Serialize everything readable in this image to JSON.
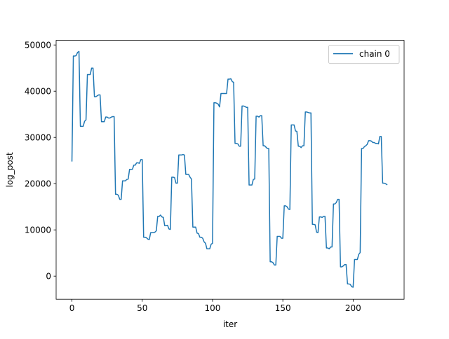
{
  "chart_data": {
    "type": "line",
    "title": "",
    "xlabel": "iter",
    "ylabel": "log_post",
    "xlim": [
      -11.25,
      236.25
    ],
    "ylim": [
      -5000,
      51000
    ],
    "xticks": [
      0,
      50,
      100,
      150,
      200
    ],
    "xtick_labels": [
      "0",
      "50",
      "100",
      "150",
      "200"
    ],
    "yticks": [
      0,
      10000,
      20000,
      30000,
      40000,
      50000
    ],
    "ytick_labels": [
      "0",
      "10000",
      "20000",
      "30000",
      "40000",
      "50000"
    ],
    "grid": false,
    "legend": {
      "position": "top-right",
      "entries": [
        "chain 0"
      ]
    },
    "series": [
      {
        "name": "chain 0",
        "color": "#1f77b4",
        "x": [
          0,
          1,
          2,
          3,
          4,
          5,
          6,
          7,
          8,
          9,
          10,
          11,
          12,
          13,
          14,
          15,
          16,
          17,
          18,
          19,
          20,
          21,
          22,
          23,
          24,
          25,
          26,
          27,
          28,
          29,
          30,
          31,
          32,
          33,
          34,
          35,
          36,
          37,
          38,
          39,
          40,
          41,
          42,
          43,
          44,
          45,
          46,
          47,
          48,
          49,
          50,
          51,
          52,
          53,
          54,
          55,
          56,
          57,
          58,
          59,
          60,
          61,
          62,
          63,
          64,
          65,
          66,
          67,
          68,
          69,
          70,
          71,
          72,
          73,
          74,
          75,
          76,
          77,
          78,
          79,
          80,
          81,
          82,
          83,
          84,
          85,
          86,
          87,
          88,
          89,
          90,
          91,
          92,
          93,
          94,
          95,
          96,
          97,
          98,
          99,
          100,
          101,
          102,
          103,
          104,
          105,
          106,
          107,
          108,
          109,
          110,
          111,
          112,
          113,
          114,
          115,
          116,
          117,
          118,
          119,
          120,
          121,
          122,
          123,
          124,
          125,
          126,
          127,
          128,
          129,
          130,
          131,
          132,
          133,
          134,
          135,
          136,
          137,
          138,
          139,
          140,
          141,
          142,
          143,
          144,
          145,
          146,
          147,
          148,
          149,
          150,
          151,
          152,
          153,
          154,
          155,
          156,
          157,
          158,
          159,
          160,
          161,
          162,
          163,
          164,
          165,
          166,
          167,
          168,
          169,
          170,
          171,
          172,
          173,
          174,
          175,
          176,
          177,
          178,
          179,
          180,
          181,
          182,
          183,
          184,
          185,
          186,
          187,
          188,
          189,
          190,
          191,
          192,
          193,
          194,
          195,
          196,
          197,
          198,
          199,
          200,
          201,
          202,
          203,
          204,
          205,
          206,
          207,
          208,
          209,
          210,
          211,
          212,
          213,
          214,
          215,
          216,
          217,
          218,
          219,
          220,
          221,
          222,
          223,
          224
        ],
        "y": [
          24900,
          47600,
          47600,
          47700,
          48400,
          48600,
          32400,
          32400,
          32400,
          33500,
          33800,
          43600,
          43600,
          43600,
          45000,
          45000,
          38800,
          38800,
          39000,
          39200,
          39200,
          33400,
          33400,
          33400,
          34400,
          34400,
          34200,
          34200,
          34400,
          34500,
          34500,
          17700,
          17700,
          17500,
          16600,
          16600,
          20600,
          20600,
          20600,
          20900,
          21000,
          23100,
          23100,
          23100,
          24000,
          24000,
          24500,
          24500,
          24400,
          25200,
          25200,
          8400,
          8400,
          8300,
          8000,
          7900,
          9400,
          9400,
          9400,
          9500,
          9800,
          12900,
          12900,
          13200,
          12800,
          12700,
          10900,
          10900,
          11000,
          10200,
          10100,
          21400,
          21400,
          21300,
          20100,
          20100,
          26200,
          26200,
          26200,
          26300,
          26200,
          22000,
          22000,
          22000,
          21400,
          21000,
          10600,
          10600,
          10600,
          9300,
          9200,
          8400,
          8400,
          8200,
          7400,
          7100,
          5900,
          5900,
          5900,
          6900,
          7100,
          37500,
          37500,
          37400,
          37200,
          36600,
          39500,
          39500,
          39500,
          39500,
          39500,
          42600,
          42600,
          42700,
          42100,
          41900,
          28700,
          28700,
          28600,
          28100,
          28100,
          36800,
          36800,
          36700,
          36500,
          36500,
          19700,
          19700,
          19700,
          20900,
          21000,
          34600,
          34600,
          34400,
          34700,
          34700,
          28200,
          28200,
          27900,
          27600,
          27600,
          3100,
          3100,
          2900,
          2400,
          2400,
          8600,
          8600,
          8600,
          8200,
          8200,
          15200,
          15200,
          15000,
          14500,
          14400,
          32700,
          32700,
          32700,
          31400,
          31300,
          28100,
          28100,
          27800,
          28200,
          28200,
          35500,
          35500,
          35400,
          35300,
          35300,
          11200,
          11200,
          11100,
          9500,
          9400,
          12800,
          12800,
          12700,
          12900,
          12900,
          6100,
          6100,
          5900,
          6300,
          6300,
          15600,
          15600,
          15900,
          16600,
          16600,
          2000,
          2000,
          2200,
          2500,
          2500,
          -1700,
          -1700,
          -1800,
          -2300,
          -2400,
          3600,
          3600,
          3600,
          4700,
          5100,
          27600,
          27600,
          28000,
          28200,
          28500,
          29300,
          29300,
          29200,
          28900,
          28900,
          28700,
          28700,
          28600,
          30200,
          30200,
          20100,
          20100,
          20000,
          19800
        ]
      }
    ]
  }
}
